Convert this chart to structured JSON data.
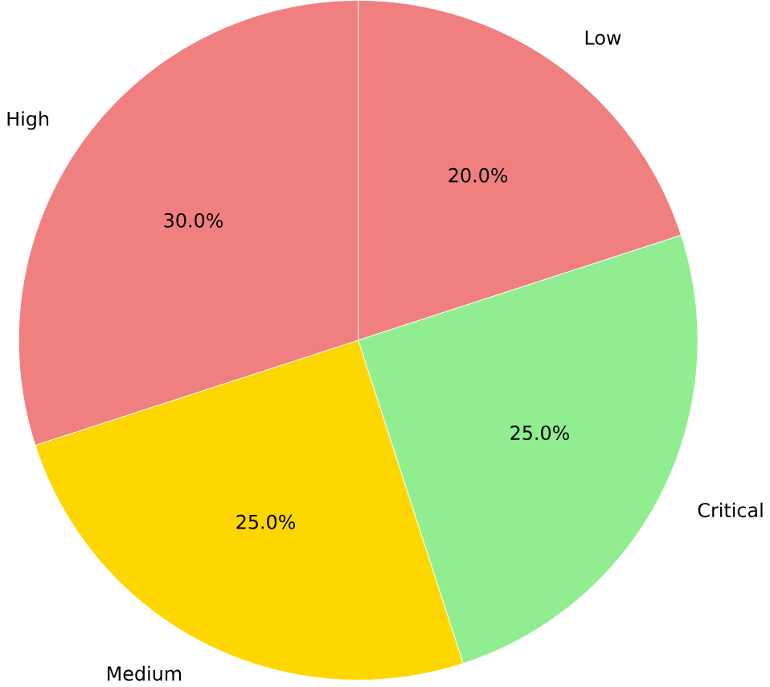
{
  "chart_data": {
    "type": "pie",
    "categories": [
      "Low",
      "Critical",
      "Medium",
      "High"
    ],
    "values": [
      20,
      25,
      25,
      30
    ],
    "colors": [
      "#f08080",
      "#90ee90",
      "#ffd700",
      "#f08080"
    ],
    "value_labels": [
      "20.0%",
      "25.0%",
      "25.0%",
      "30.0%"
    ]
  }
}
